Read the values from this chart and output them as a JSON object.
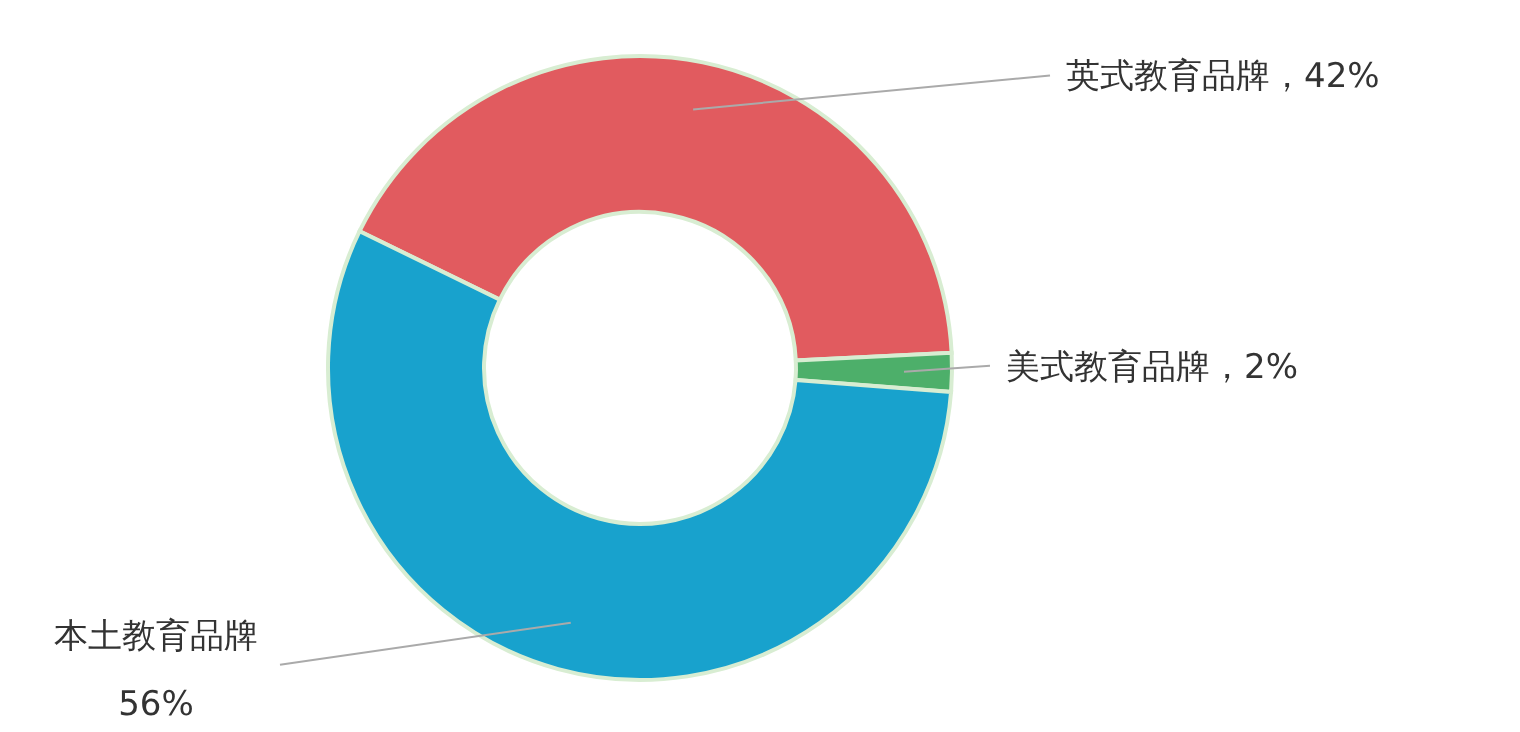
{
  "chart_data": {
    "type": "donut",
    "categories": [
      "英式教育品牌",
      "美式教育品牌",
      "本土教育品牌"
    ],
    "values": [
      42,
      2,
      56
    ],
    "colors": [
      "#e15b5f",
      "#4daf6a",
      "#18a2cd"
    ],
    "value_labels": [
      "42%",
      "2%",
      "56%"
    ]
  }
}
